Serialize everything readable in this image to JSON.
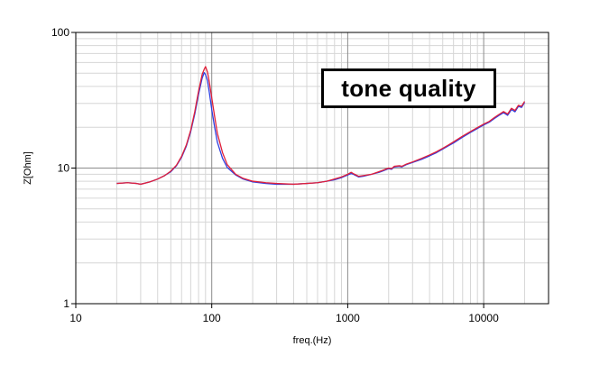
{
  "chart_data": {
    "type": "line",
    "title": "",
    "xlabel": "freq.(Hz)",
    "ylabel": "Z[Ohm]",
    "xscale": "log",
    "yscale": "log",
    "xlim": [
      10,
      30000
    ],
    "ylim": [
      1,
      100
    ],
    "x_ticks": [
      10,
      100,
      1000,
      10000
    ],
    "x_tick_labels": [
      "10",
      "100",
      "1000",
      "10000"
    ],
    "y_ticks": [
      1,
      10,
      100
    ],
    "y_tick_labels": [
      "1",
      "10",
      "100"
    ],
    "grid": true,
    "annotation": "tone quality",
    "series": [
      {
        "color": "#2f3fe0",
        "x": [
          20,
          24,
          28,
          30,
          35,
          40,
          45,
          50,
          55,
          60,
          65,
          70,
          75,
          80,
          85,
          88,
          90,
          93,
          96,
          100,
          105,
          110,
          120,
          130,
          150,
          170,
          200,
          250,
          300,
          400,
          500,
          600,
          700,
          800,
          900,
          1000,
          1060,
          1100,
          1150,
          1200,
          1300,
          1500,
          1700,
          1800,
          2000,
          2100,
          2200,
          2400,
          2500,
          2700,
          3000,
          3500,
          4000,
          4500,
          5000,
          5500,
          6000,
          7000,
          8000,
          9000,
          10000,
          11000,
          12000,
          13000,
          14000,
          15000,
          16000,
          17000,
          18000,
          19000,
          20000
        ],
        "y": [
          7.7,
          7.8,
          7.7,
          7.6,
          7.9,
          8.3,
          8.8,
          9.4,
          10.4,
          12.0,
          14.5,
          18.5,
          25.0,
          35.0,
          46.0,
          50.5,
          49.0,
          44.0,
          36.0,
          27.0,
          20.0,
          15.5,
          11.8,
          10.1,
          8.9,
          8.3,
          7.9,
          7.7,
          7.6,
          7.6,
          7.7,
          7.8,
          8.0,
          8.2,
          8.5,
          8.9,
          9.1,
          9.0,
          8.8,
          8.6,
          8.7,
          9.0,
          9.3,
          9.5,
          9.9,
          9.8,
          10.2,
          10.3,
          10.2,
          10.6,
          11.0,
          11.6,
          12.3,
          13.0,
          13.8,
          14.6,
          15.3,
          16.9,
          18.3,
          19.6,
          20.8,
          21.8,
          23.2,
          24.5,
          25.6,
          24.5,
          27.0,
          26.0,
          28.5,
          28.0,
          30.5
        ]
      },
      {
        "color": "#e0203a",
        "x": [
          20,
          24,
          28,
          30,
          35,
          40,
          45,
          50,
          55,
          60,
          65,
          70,
          75,
          80,
          85,
          88,
          90,
          93,
          96,
          100,
          105,
          110,
          120,
          130,
          150,
          170,
          200,
          250,
          300,
          400,
          500,
          600,
          700,
          800,
          900,
          1000,
          1060,
          1100,
          1150,
          1200,
          1300,
          1500,
          1700,
          1800,
          2000,
          2100,
          2200,
          2400,
          2500,
          2700,
          3000,
          3500,
          4000,
          4500,
          5000,
          5500,
          6000,
          7000,
          8000,
          9000,
          10000,
          11000,
          12000,
          13000,
          14000,
          15000,
          16000,
          17000,
          18000,
          19000,
          20000
        ],
        "y": [
          7.7,
          7.8,
          7.7,
          7.6,
          7.9,
          8.3,
          8.8,
          9.5,
          10.5,
          12.2,
          14.8,
          19.0,
          26.0,
          37.0,
          49.0,
          53.5,
          56.0,
          51.0,
          43.0,
          33.0,
          24.0,
          18.0,
          13.0,
          10.6,
          9.0,
          8.4,
          8.0,
          7.8,
          7.7,
          7.6,
          7.7,
          7.8,
          8.0,
          8.3,
          8.6,
          9.0,
          9.3,
          9.1,
          8.9,
          8.7,
          8.8,
          9.0,
          9.4,
          9.6,
          10.0,
          9.9,
          10.3,
          10.4,
          10.3,
          10.7,
          11.1,
          11.8,
          12.5,
          13.2,
          14.0,
          14.8,
          15.6,
          17.2,
          18.6,
          19.9,
          21.1,
          22.1,
          23.6,
          24.9,
          26.1,
          25.0,
          27.6,
          26.6,
          29.0,
          28.6,
          31.0
        ]
      }
    ]
  }
}
